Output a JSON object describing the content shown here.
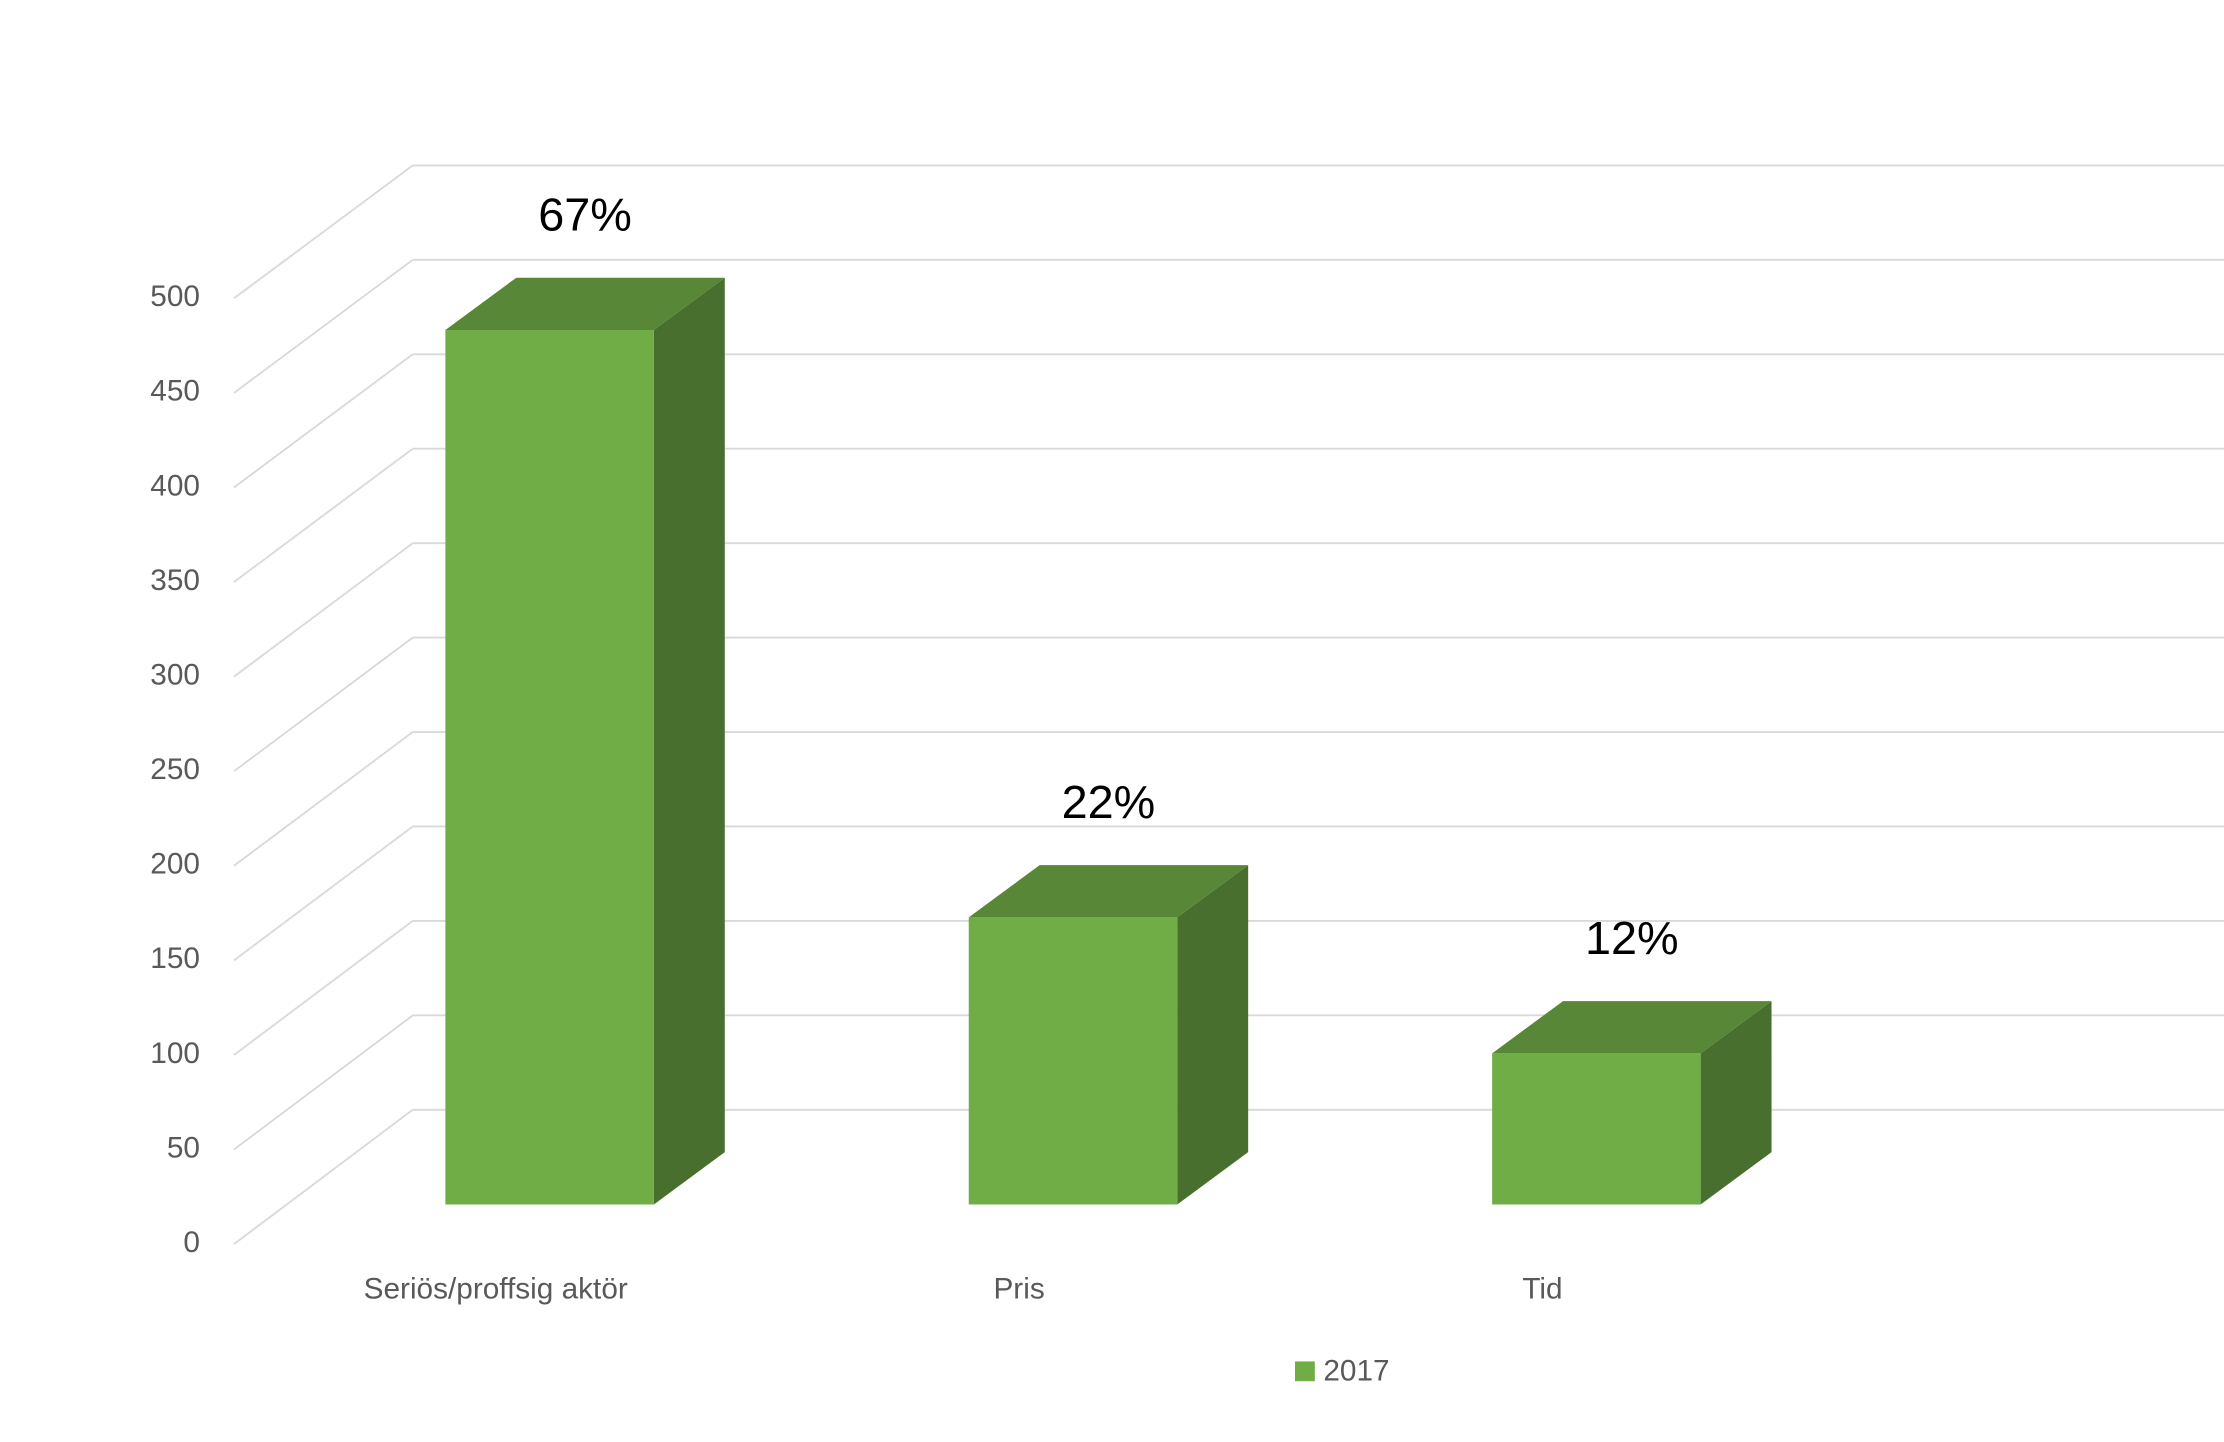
{
  "chart_data": {
    "type": "bar3d",
    "categories": [
      "Seriös/proffsig aktör",
      "Pris",
      "Tid"
    ],
    "series": [
      {
        "name": "2017",
        "color": "#70ad47",
        "values": [
          463,
          152,
          80
        ],
        "value_labels": [
          "67%",
          "22%",
          "12%"
        ]
      }
    ],
    "ylim": [
      0,
      500
    ],
    "yticks": [
      0,
      50,
      100,
      150,
      200,
      250,
      300,
      350,
      400,
      450,
      500
    ],
    "grid": true,
    "legend": "bottom"
  }
}
